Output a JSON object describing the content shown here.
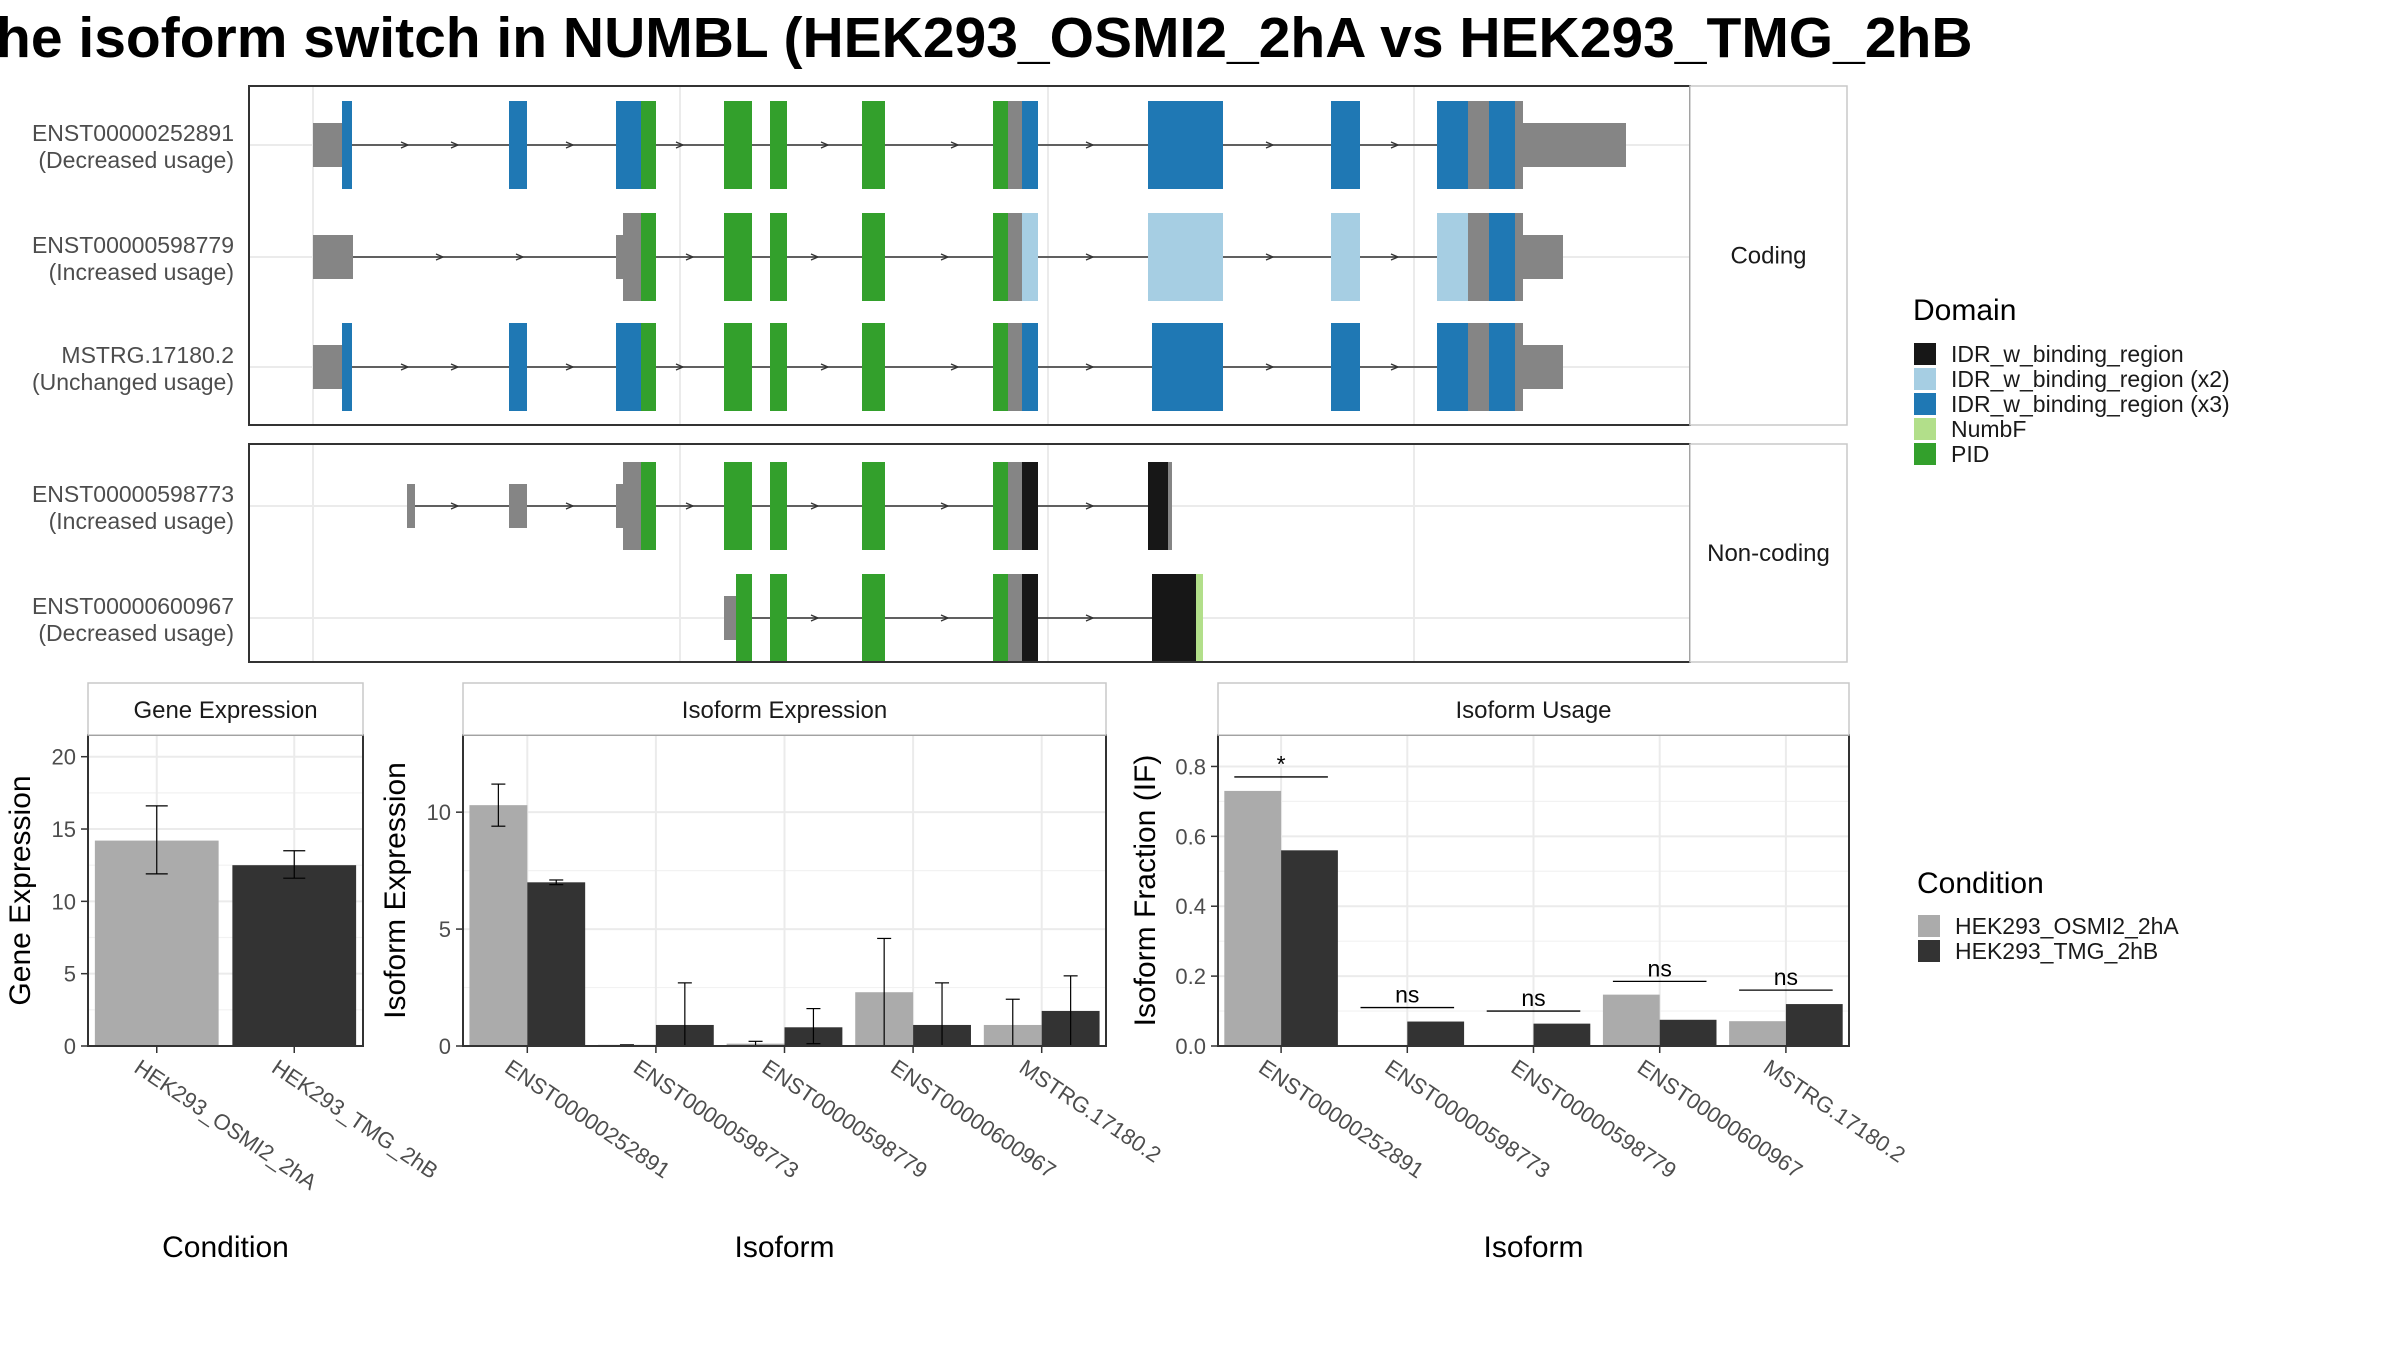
{
  "title": "he isoform switch in NUMBL (HEK293_OSMI2_2hA vs HEK293_TMG_2hB",
  "colors": {
    "IDR_w_binding_region": "#171717",
    "IDR_w_binding_region (x2)": "#a6cee3",
    "IDR_w_binding_region (x3)": "#1f78b4",
    "NumbF": "#b2df8a",
    "PID": "#33a02c",
    "none": "#858585",
    "HEK293_OSMI2_2hA": "#ababab",
    "HEK293_TMG_2hB": "#333333"
  },
  "structure": {
    "facets": [
      {
        "label": "Coding",
        "transcripts": [
          {
            "id": "ENST00000252891",
            "usage": "(Decreased usage)"
          },
          {
            "id": "ENST00000598779",
            "usage": "(Increased usage)"
          },
          {
            "id": "MSTRG.17180.2",
            "usage": "(Unchanged usage)"
          }
        ]
      },
      {
        "label": "Non-coding",
        "transcripts": [
          {
            "id": "ENST00000598773",
            "usage": "(Increased usage)"
          },
          {
            "id": "ENST00000600967",
            "usage": "(Decreased usage)"
          }
        ]
      }
    ],
    "domain_legend": {
      "title": "Domain",
      "items": [
        "IDR_w_binding_region",
        "IDR_w_binding_region (x2)",
        "IDR_w_binding_region (x3)",
        "NumbF",
        "PID"
      ]
    }
  },
  "chart_data": [
    {
      "type": "bar",
      "title": "Gene Expression",
      "xlabel": "Condition",
      "ylabel": "Gene Expression",
      "categories": [
        "HEK293_OSMI2_2hA",
        "HEK293_TMG_2hB"
      ],
      "values": [
        14.2,
        12.5
      ],
      "error_low": [
        11.9,
        11.6
      ],
      "error_high": [
        16.6,
        13.5
      ],
      "ylim": [
        0,
        21.5
      ],
      "yticks": [
        0,
        5,
        10,
        15,
        20
      ]
    },
    {
      "type": "bar",
      "title": "Isoform Expression",
      "xlabel": "Isoform",
      "ylabel": "Isoform Expression",
      "categories": [
        "ENST00000252891",
        "ENST00000598773",
        "ENST00000598779",
        "ENST00000600967",
        "MSTRG.17180.2"
      ],
      "series": [
        {
          "name": "HEK293_OSMI2_2hA",
          "values": [
            10.3,
            0.05,
            0.1,
            2.3,
            0.9
          ],
          "error_low": [
            9.4,
            0,
            0,
            0,
            0
          ],
          "error_high": [
            11.2,
            0.05,
            0.2,
            4.6,
            2.0
          ]
        },
        {
          "name": "HEK293_TMG_2hB",
          "values": [
            7.0,
            0.9,
            0.8,
            0.9,
            1.5
          ],
          "error_low": [
            6.9,
            0,
            0.1,
            0,
            0
          ],
          "error_high": [
            7.1,
            2.7,
            1.6,
            2.7,
            3.0
          ]
        }
      ],
      "ylim": [
        0,
        13.3
      ],
      "yticks": [
        0,
        5,
        10
      ]
    },
    {
      "type": "bar",
      "title": "Isoform Usage",
      "xlabel": "Isoform",
      "ylabel": "Isoform Fraction (IF)",
      "categories": [
        "ENST00000252891",
        "ENST00000598773",
        "ENST00000598779",
        "ENST00000600967",
        "MSTRG.17180.2"
      ],
      "series": [
        {
          "name": "HEK293_OSMI2_2hA",
          "values": [
            0.73,
            0.003,
            0.003,
            0.147,
            0.071
          ]
        },
        {
          "name": "HEK293_TMG_2hB",
          "values": [
            0.56,
            0.07,
            0.064,
            0.075,
            0.12
          ]
        }
      ],
      "significance": [
        {
          "label": "*",
          "y": 0.77
        },
        {
          "label": "ns",
          "y": 0.11
        },
        {
          "label": "ns",
          "y": 0.1
        },
        {
          "label": "ns",
          "y": 0.185
        },
        {
          "label": "ns",
          "y": 0.16
        }
      ],
      "ylim": [
        0,
        0.89
      ],
      "yticks": [
        0.0,
        0.2,
        0.4,
        0.6,
        0.8
      ],
      "ytick_labels": [
        "0.0",
        "0.2",
        "0.4",
        "0.6",
        "0.8"
      ]
    }
  ],
  "condition_legend": {
    "title": "Condition",
    "items": [
      "HEK293_OSMI2_2hA",
      "HEK293_TMG_2hB"
    ]
  }
}
